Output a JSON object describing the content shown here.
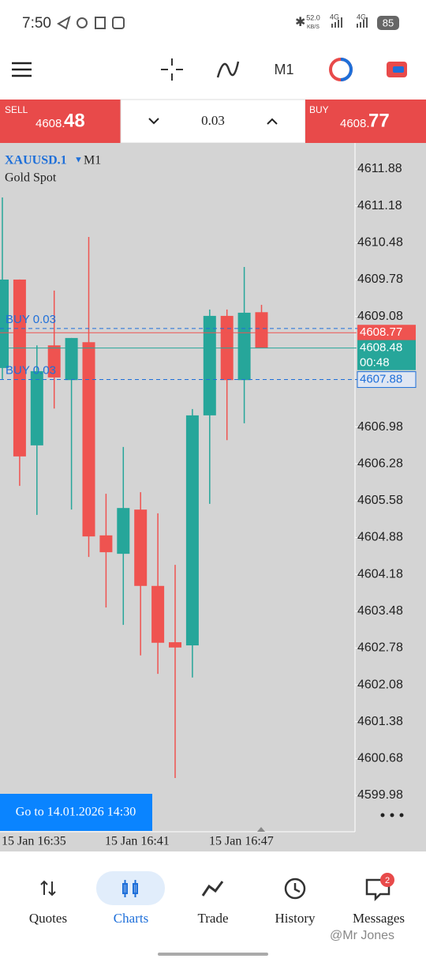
{
  "status_bar": {
    "time": "7:50",
    "speed": "52.0",
    "speed_unit": "KB/S",
    "net1": "4G",
    "net2": "4G",
    "battery": "85"
  },
  "toolbar": {
    "timeframe": "M1"
  },
  "trade_bar": {
    "sell_label": "SELL",
    "sell_price_main": "4608.",
    "sell_price_big": "48",
    "lot": "0.03",
    "buy_label": "BUY",
    "buy_price_main": "4608.",
    "buy_price_big": "77"
  },
  "chart_data": {
    "type": "candlestick",
    "symbol": "XAUUSD.1",
    "timeframe": "M1",
    "description": "Gold Spot",
    "open": [
      4608.1,
      4609.78,
      4606.63,
      4608.53,
      4607.87,
      4608.59,
      4604.92,
      4604.57,
      4605.41,
      4603.96,
      4602.89,
      4602.83,
      4607.2,
      4609.09,
      4607.87,
      4609.16
    ],
    "high": [
      4611.34,
      4609.78,
      4608.53,
      4609.57,
      4608.67,
      4610.59,
      4605.71,
      4606.6,
      4605.74,
      4605.34,
      4604.36,
      4607.32,
      4609.21,
      4609.21,
      4610.02,
      4609.3
    ],
    "low": [
      4607.89,
      4605.86,
      4605.31,
      4607.33,
      4605.41,
      4604.51,
      4603.55,
      4603.22,
      4602.64,
      4602.29,
      4600.31,
      4602.22,
      4605.52,
      4606.73,
      4607.05,
      4608.48
    ],
    "close": [
      4609.78,
      4606.42,
      4608.04,
      4607.92,
      4608.67,
      4604.9,
      4604.6,
      4605.44,
      4603.96,
      4602.88,
      4602.79,
      4607.2,
      4609.09,
      4607.87,
      4609.15,
      4608.48
    ],
    "up_color": "#26a69a",
    "down_color": "#ef5350",
    "ylim": [
      4599.29,
      4612.24
    ],
    "yticks": [
      4611.88,
      4611.18,
      4610.48,
      4609.78,
      4609.08,
      4606.98,
      4606.28,
      4605.58,
      4604.88,
      4604.18,
      4603.48,
      4602.78,
      4602.08,
      4601.38,
      4600.68,
      4599.98
    ],
    "xtick_labels": [
      "15 Jan 16:35",
      "15 Jan 16:41",
      "15 Jan 16:47"
    ],
    "ask": 4608.77,
    "bid": 4608.48,
    "countdown": "00:48",
    "order_lines": [
      {
        "label": "BUY 0.03",
        "value": 4608.85
      },
      {
        "label": "BUY 0.03",
        "value": 4607.88
      }
    ],
    "goto_button": "Go to 14.01.2026 14:30"
  },
  "bottom_nav": {
    "items": [
      "Quotes",
      "Charts",
      "Trade",
      "History",
      "Messages"
    ],
    "active": "Charts",
    "badge": "2"
  },
  "watermark": "@Mr Jones"
}
